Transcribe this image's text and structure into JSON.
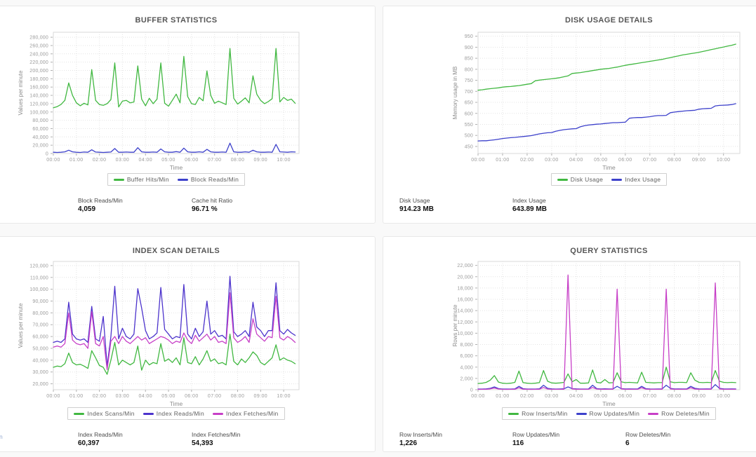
{
  "colors": {
    "green": "#41b841",
    "blue": "#3d41cb",
    "violet_blue": "#4c33cc",
    "magenta": "#c73fc7",
    "panel_border": "#e8e8e8",
    "grid": "#e4e4e4",
    "plot_border": "#d9d9d9",
    "tick_text": "#9b9b9b",
    "axis_title_text": "#8c8c8c",
    "chart_title_text": "#565656"
  },
  "panels": [
    {
      "title": "BUFFER STATISTICS",
      "stats": [
        {
          "label": "Block Reads/Min",
          "value": "4,059"
        },
        {
          "label": "Cache hit Ratio",
          "value": "96.71 %"
        }
      ]
    },
    {
      "title": "DISK USAGE DETAILS",
      "stats": [
        {
          "label": "Disk Usage",
          "value": "914.23 MB"
        },
        {
          "label": "Index Usage",
          "value": "643.89 MB"
        }
      ]
    },
    {
      "title": "INDEX SCAN DETAILS",
      "stats": [
        {
          "label": "Index Reads/Min",
          "value": "60,397"
        },
        {
          "label": "Index Fetches/Min",
          "value": "54,393"
        }
      ],
      "clipped_fragment": "n"
    },
    {
      "title": "QUERY STATISTICS",
      "stats": [
        {
          "label": "Row Inserts/Min",
          "value": "1,226"
        },
        {
          "label": "Row Updates/Min",
          "value": "116"
        },
        {
          "label": "Row Deletes/Min",
          "value": "6"
        }
      ]
    }
  ],
  "x_minutes": [
    0,
    10,
    20,
    30,
    40,
    50,
    60,
    70,
    80,
    90,
    100,
    110,
    120,
    130,
    140,
    150,
    160,
    170,
    180,
    190,
    200,
    210,
    220,
    230,
    240,
    250,
    260,
    270,
    280,
    290,
    300,
    310,
    320,
    330,
    340,
    350,
    360,
    370,
    380,
    390,
    400,
    410,
    420,
    430,
    440,
    450,
    460,
    470,
    480,
    490,
    500,
    510,
    520,
    530,
    540,
    550,
    560,
    570,
    580,
    590,
    600,
    610,
    620,
    630
  ],
  "xlim": [
    0,
    640
  ],
  "xticks": [
    0,
    60,
    120,
    180,
    240,
    300,
    360,
    420,
    480,
    540,
    600
  ],
  "xtick_labels": [
    "00:00",
    "01:00",
    "02:00",
    "03:00",
    "04:00",
    "05:00",
    "06:00",
    "07:00",
    "08:00",
    "09:00",
    "10:00"
  ],
  "chart_data": [
    {
      "type": "line",
      "title": "BUFFER STATISTICS",
      "xlabel": "Time",
      "ylabel": "Values per minute",
      "ylim": [
        0,
        292000
      ],
      "yticks": [
        0,
        20000,
        40000,
        60000,
        80000,
        100000,
        120000,
        140000,
        160000,
        180000,
        200000,
        220000,
        240000,
        260000,
        280000
      ],
      "grid": true,
      "legend_position": "bottom",
      "series": [
        {
          "name": "Buffer Hits/Min",
          "color": "#41b841",
          "values": [
            110000,
            113000,
            118000,
            128000,
            170000,
            140000,
            122000,
            115000,
            121000,
            117000,
            202000,
            128000,
            118000,
            116000,
            120000,
            130000,
            218000,
            112000,
            126000,
            128000,
            122000,
            124000,
            211000,
            131000,
            115000,
            133000,
            120000,
            131000,
            218000,
            121000,
            114000,
            128000,
            143000,
            122000,
            234000,
            137000,
            120000,
            118000,
            135000,
            127000,
            199000,
            140000,
            121000,
            126000,
            122000,
            118000,
            253000,
            133000,
            119000,
            126000,
            134000,
            122000,
            187000,
            143000,
            128000,
            120000,
            125000,
            132000,
            253000,
            124000,
            135000,
            128000,
            131000,
            121000
          ]
        },
        {
          "name": "Block Reads/Min",
          "color": "#3d41cb",
          "values": [
            3000,
            2500,
            3000,
            4000,
            8000,
            4000,
            3000,
            2500,
            3500,
            3000,
            9000,
            3500,
            3000,
            2500,
            3000,
            3500,
            12000,
            3000,
            3000,
            3500,
            3000,
            3000,
            14000,
            4000,
            3000,
            3000,
            3500,
            3000,
            11000,
            4000,
            3000,
            3000,
            4500,
            3000,
            13000,
            4000,
            3000,
            3000,
            4000,
            3000,
            10000,
            4000,
            3000,
            3000,
            3500,
            3000,
            25000,
            4000,
            3000,
            3000,
            4000,
            3000,
            8000,
            4000,
            3000,
            3000,
            3500,
            3000,
            22000,
            4000,
            3500,
            3000,
            4000,
            3500
          ]
        }
      ]
    },
    {
      "type": "line",
      "title": "DISK USAGE DETAILS",
      "xlabel": "Time",
      "ylabel": "Memory usage in MB",
      "ylim": [
        418,
        968
      ],
      "yticks": [
        450,
        500,
        550,
        600,
        650,
        700,
        750,
        800,
        850,
        900,
        950
      ],
      "grid": true,
      "legend_position": "bottom",
      "series": [
        {
          "name": "Disk Usage",
          "color": "#41b841",
          "values": [
            705,
            707,
            710,
            712,
            714,
            716,
            719,
            721,
            722,
            724,
            726,
            729,
            732,
            735,
            748,
            751,
            753,
            755,
            757,
            759,
            762,
            766,
            770,
            781,
            783,
            785,
            788,
            791,
            794,
            797,
            800,
            802,
            804,
            807,
            810,
            814,
            818,
            821,
            824,
            827,
            830,
            833,
            836,
            839,
            842,
            845,
            849,
            853,
            857,
            861,
            865,
            868,
            871,
            874,
            877,
            881,
            885,
            889,
            893,
            897,
            901,
            905,
            909,
            914
          ]
        },
        {
          "name": "Index Usage",
          "color": "#3d41cb",
          "values": [
            475,
            476,
            476,
            478,
            480,
            483,
            486,
            488,
            490,
            491,
            493,
            495,
            497,
            499,
            503,
            507,
            510,
            512,
            513,
            519,
            523,
            526,
            528,
            530,
            531,
            539,
            544,
            547,
            549,
            551,
            552,
            554,
            556,
            558,
            558,
            559,
            560,
            578,
            580,
            581,
            581,
            583,
            585,
            588,
            590,
            590,
            591,
            603,
            606,
            608,
            610,
            612,
            613,
            614,
            619,
            621,
            622,
            623,
            634,
            636,
            637,
            638,
            640,
            644
          ]
        }
      ]
    },
    {
      "type": "line",
      "title": "INDEX SCAN DETAILS",
      "xlabel": "Time",
      "ylabel": "Values per minute",
      "ylim": [
        15000,
        123500
      ],
      "yticks": [
        20000,
        30000,
        40000,
        50000,
        60000,
        70000,
        80000,
        90000,
        100000,
        110000,
        120000
      ],
      "grid": true,
      "legend_position": "bottom",
      "series": [
        {
          "name": "Index Scans/Min",
          "color": "#41b841",
          "values": [
            34000,
            35000,
            34500,
            37000,
            46000,
            38000,
            36000,
            36500,
            35000,
            33000,
            48000,
            42000,
            35500,
            34000,
            28000,
            40000,
            55000,
            36000,
            40000,
            38000,
            36000,
            38000,
            52000,
            31500,
            40000,
            36000,
            38000,
            37000,
            54000,
            39000,
            41000,
            38000,
            42000,
            36000,
            59000,
            38000,
            37000,
            43000,
            36000,
            41000,
            48000,
            39000,
            41000,
            37000,
            38000,
            36000,
            62000,
            39000,
            36000,
            41000,
            38000,
            42000,
            47000,
            44000,
            38000,
            36000,
            39000,
            42000,
            53000,
            40000,
            42000,
            40000,
            39000,
            37000
          ]
        },
        {
          "name": "Index Reads/Min",
          "color": "#4c33cc",
          "values": [
            55000,
            56000,
            55000,
            58000,
            89000,
            62000,
            58000,
            57000,
            58000,
            55000,
            85500,
            58000,
            56000,
            77000,
            35000,
            60000,
            102500,
            58000,
            67000,
            60000,
            58000,
            62000,
            100500,
            84000,
            65000,
            58000,
            60000,
            63000,
            101500,
            66000,
            62000,
            58000,
            60000,
            59000,
            104000,
            62000,
            58000,
            67000,
            60000,
            64000,
            90000,
            62000,
            65000,
            60000,
            61000,
            58000,
            111000,
            64000,
            60000,
            62000,
            65000,
            60000,
            89000,
            68000,
            65000,
            60000,
            65000,
            65000,
            105500,
            65000,
            62000,
            66000,
            63000,
            61000
          ]
        },
        {
          "name": "Index Fetches/Min",
          "color": "#c73fc7",
          "values": [
            51000,
            52000,
            51000,
            54000,
            80000,
            57000,
            54000,
            53000,
            54000,
            50000,
            81000,
            54000,
            52000,
            60000,
            32000,
            56000,
            60000,
            54000,
            60000,
            56000,
            54000,
            57000,
            60000,
            57000,
            59000,
            54000,
            56000,
            58000,
            60000,
            59000,
            57000,
            54000,
            56000,
            55000,
            63000,
            57000,
            54000,
            61000,
            56000,
            59000,
            62000,
            57000,
            60000,
            55000,
            56000,
            54000,
            97000,
            59000,
            55000,
            57000,
            60000,
            55000,
            75000,
            62000,
            59000,
            56000,
            60000,
            59000,
            94000,
            59000,
            57000,
            60000,
            58000,
            55000
          ]
        }
      ]
    },
    {
      "type": "line",
      "title": "QUERY STATISTICS",
      "xlabel": "Time",
      "ylabel": "Rows per minute",
      "ylim": [
        0,
        22700
      ],
      "yticks": [
        0,
        2000,
        4000,
        6000,
        8000,
        10000,
        12000,
        14000,
        16000,
        18000,
        20000,
        22000
      ],
      "grid": true,
      "legend_position": "bottom",
      "series": [
        {
          "name": "Row Inserts/Min",
          "color": "#41b841",
          "values": [
            1100,
            1150,
            1300,
            1700,
            2500,
            1350,
            1150,
            1100,
            1150,
            1300,
            3300,
            1250,
            1150,
            1100,
            1150,
            1250,
            3400,
            1500,
            1200,
            1150,
            1200,
            1300,
            2800,
            1400,
            1800,
            1150,
            1150,
            1200,
            3500,
            1300,
            1200,
            1800,
            1200,
            1250,
            3000,
            1400,
            1250,
            1300,
            1250,
            1200,
            3100,
            1300,
            1250,
            1200,
            1250,
            1250,
            4000,
            1400,
            1250,
            1300,
            1300,
            1250,
            3000,
            1700,
            1300,
            1250,
            1300,
            1250,
            3400,
            1500,
            1300,
            1250,
            1300,
            1250
          ]
        },
        {
          "name": "Row Updates/Min",
          "color": "#3d41cb",
          "values": [
            120,
            130,
            150,
            250,
            500,
            200,
            130,
            120,
            130,
            150,
            600,
            180,
            130,
            120,
            130,
            160,
            800,
            250,
            150,
            130,
            140,
            160,
            500,
            200,
            150,
            130,
            130,
            140,
            800,
            200,
            140,
            160,
            140,
            150,
            600,
            200,
            140,
            150,
            140,
            140,
            600,
            180,
            140,
            130,
            140,
            150,
            800,
            250,
            140,
            150,
            140,
            140,
            600,
            250,
            150,
            140,
            150,
            140,
            900,
            250,
            150,
            140,
            150,
            140
          ]
        },
        {
          "name": "Row Deletes/Min",
          "color": "#c73fc7",
          "values": [
            60,
            70,
            80,
            150,
            300,
            120,
            70,
            60,
            70,
            80,
            350,
            100,
            70,
            60,
            70,
            90,
            400,
            120,
            80,
            70,
            80,
            90,
            20300,
            150,
            90,
            70,
            70,
            80,
            400,
            120,
            80,
            90,
            80,
            90,
            17800,
            150,
            80,
            90,
            80,
            80,
            350,
            110,
            80,
            70,
            80,
            90,
            17800,
            150,
            80,
            90,
            80,
            80,
            350,
            130,
            90,
            80,
            90,
            80,
            18900,
            150,
            90,
            80,
            90,
            80
          ]
        }
      ]
    }
  ]
}
